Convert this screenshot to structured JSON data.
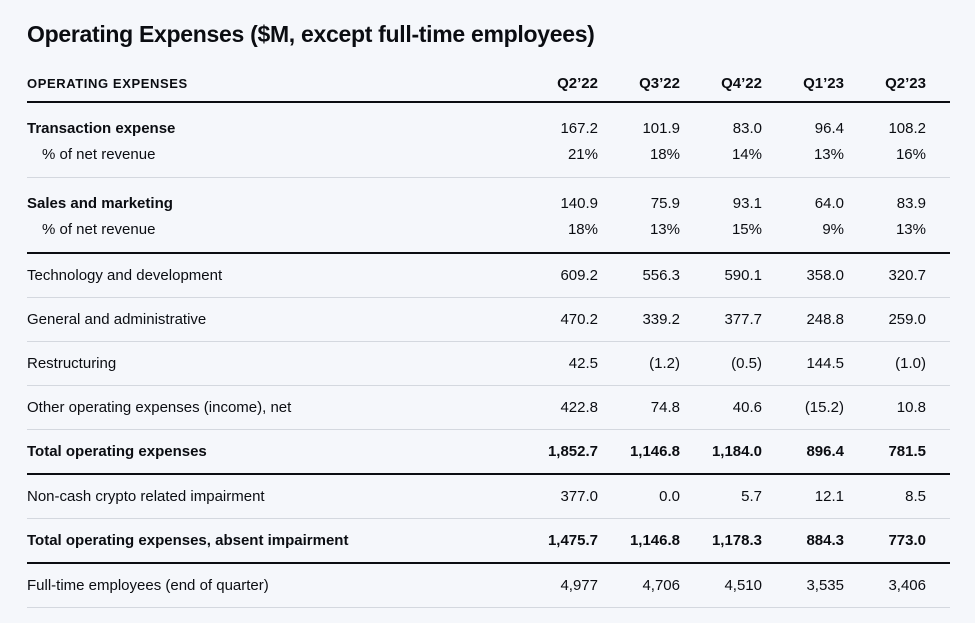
{
  "title": "Operating Expenses ($M, except full-time employees)",
  "colors": {
    "background": "#f5f7fb",
    "text": "#0b0d12",
    "divider_light": "#d4d8df",
    "divider_dark": "#0b0d12"
  },
  "table": {
    "header": {
      "label": "OPERATING EXPENSES",
      "columns": [
        "Q2’22",
        "Q3’22",
        "Q4’22",
        "Q1’23",
        "Q2’23"
      ]
    },
    "rows": [
      {
        "label": "Transaction expense",
        "values": [
          "167.2",
          "101.9",
          "83.0",
          "96.4",
          "108.2"
        ],
        "bold": "label",
        "indent": false,
        "divider_below": "none"
      },
      {
        "label": "% of net revenue",
        "values": [
          "21%",
          "18%",
          "14%",
          "13%",
          "16%"
        ],
        "bold": "none",
        "indent": true,
        "divider_below": "light"
      },
      {
        "label": "Sales and marketing",
        "values": [
          "140.9",
          "75.9",
          "93.1",
          "64.0",
          "83.9"
        ],
        "bold": "label",
        "indent": false,
        "divider_below": "none"
      },
      {
        "label": "% of net revenue",
        "values": [
          "18%",
          "13%",
          "15%",
          "9%",
          "13%"
        ],
        "bold": "none",
        "indent": true,
        "divider_below": "dark"
      },
      {
        "label": "Technology and development",
        "values": [
          "609.2",
          "556.3",
          "590.1",
          "358.0",
          "320.7"
        ],
        "bold": "none",
        "indent": false,
        "divider_below": "light"
      },
      {
        "label": "General and administrative",
        "values": [
          "470.2",
          "339.2",
          "377.7",
          "248.8",
          "259.0"
        ],
        "bold": "none",
        "indent": false,
        "divider_below": "light"
      },
      {
        "label": "Restructuring",
        "values": [
          "42.5",
          "(1.2)",
          "(0.5)",
          "144.5",
          "(1.0)"
        ],
        "bold": "none",
        "indent": false,
        "divider_below": "light"
      },
      {
        "label": "Other operating expenses (income), net",
        "values": [
          "422.8",
          "74.8",
          "40.6",
          "(15.2)",
          "10.8"
        ],
        "bold": "none",
        "indent": false,
        "divider_below": "light"
      },
      {
        "label": "Total operating expenses",
        "values": [
          "1,852.7",
          "1,146.8",
          "1,184.0",
          "896.4",
          "781.5"
        ],
        "bold": "all",
        "indent": false,
        "divider_below": "dark"
      },
      {
        "label": "Non-cash crypto related impairment",
        "values": [
          "377.0",
          "0.0",
          "5.7",
          "12.1",
          "8.5"
        ],
        "bold": "none",
        "indent": false,
        "divider_below": "light"
      },
      {
        "label": "Total operating expenses, absent impairment",
        "values": [
          "1,475.7",
          "1,146.8",
          "1,178.3",
          "884.3",
          "773.0"
        ],
        "bold": "all",
        "indent": false,
        "divider_below": "dark"
      },
      {
        "label": "Full-time employees (end of quarter)",
        "values": [
          "4,977",
          "4,706",
          "4,510",
          "3,535",
          "3,406"
        ],
        "bold": "none",
        "indent": false,
        "divider_below": "light"
      }
    ]
  }
}
